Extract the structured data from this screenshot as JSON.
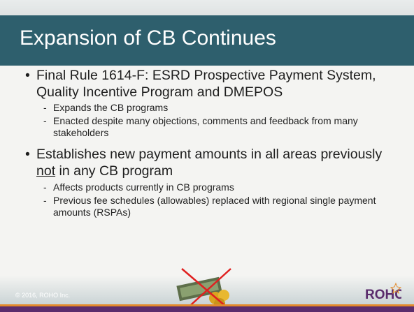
{
  "title": "Expansion of CB Continues",
  "bullets": [
    {
      "segments": [
        "Final Rule 1614-F: ESRD Prospective Payment System, Quality Incentive Program and DMEPOS"
      ],
      "subs": [
        "Expands the CB programs",
        "Enacted despite many objections, comments and feedback from many stakeholders"
      ]
    },
    {
      "segments": [
        "Establishes new payment amounts in all areas previously ",
        "not",
        " in any CB program"
      ],
      "subs": [
        "Affects products currently in CB programs",
        "Previous fee schedules (allowables) replaced with regional single payment amounts (RSPAs)"
      ]
    }
  ],
  "footer": "© 2016, ROHO Inc.",
  "logo": "ROHO"
}
